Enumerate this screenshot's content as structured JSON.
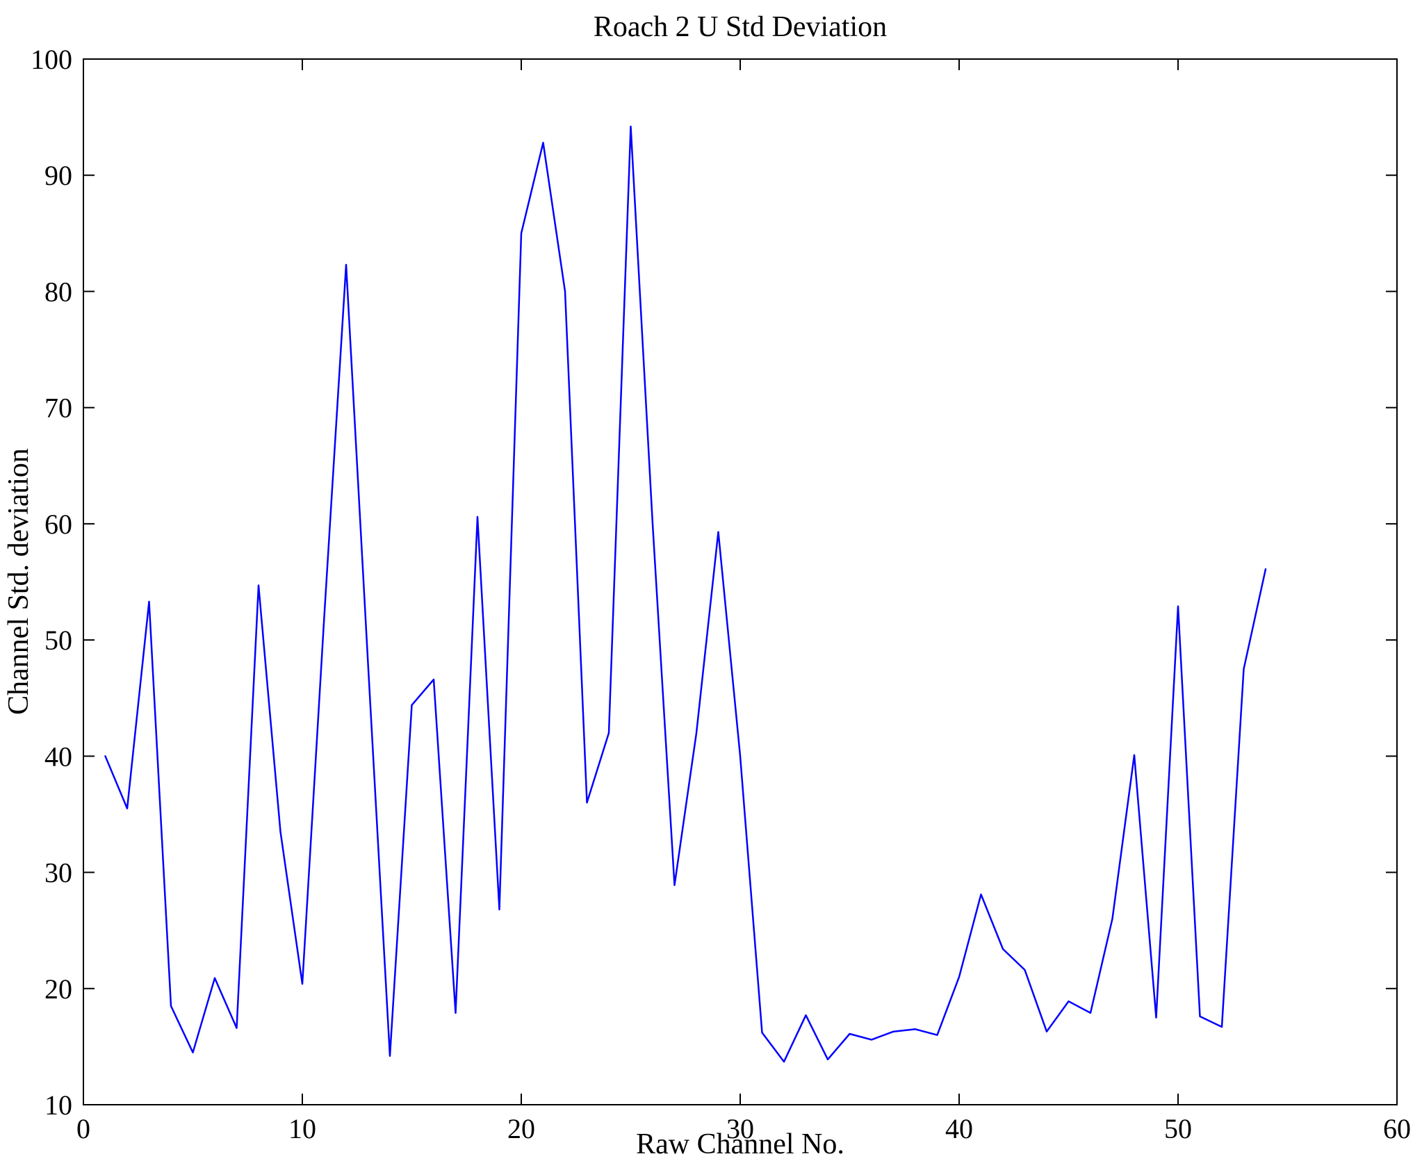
{
  "chart_data": {
    "type": "line",
    "title": "Roach 2 U Std Deviation",
    "xlabel": "Raw Channel No.",
    "ylabel": "Channel Std. deviation",
    "xlim": [
      0,
      60
    ],
    "ylim": [
      10,
      100
    ],
    "xticks": [
      0,
      10,
      20,
      30,
      40,
      50,
      60
    ],
    "yticks": [
      10,
      20,
      30,
      40,
      50,
      60,
      70,
      80,
      90,
      100
    ],
    "grid": false,
    "legend": "none",
    "line_color": "#0000ff",
    "axis_color": "#000000",
    "background_color": "#ffffff",
    "x": [
      1,
      2,
      3,
      4,
      5,
      6,
      7,
      8,
      9,
      10,
      11,
      12,
      13,
      14,
      15,
      16,
      17,
      18,
      19,
      20,
      21,
      22,
      23,
      24,
      25,
      26,
      27,
      28,
      29,
      30,
      31,
      32,
      33,
      34,
      35,
      36,
      37,
      38,
      39,
      40,
      41,
      42,
      43,
      44,
      45,
      46,
      47,
      48,
      49,
      50,
      51,
      52,
      53,
      54
    ],
    "y": [
      40.0,
      35.5,
      53.3,
      18.5,
      14.5,
      20.9,
      16.6,
      54.7,
      33.5,
      20.4,
      52.0,
      82.3,
      48.0,
      14.2,
      44.4,
      46.6,
      17.9,
      60.6,
      26.8,
      85.0,
      92.8,
      80.0,
      36.0,
      42.0,
      94.2,
      60.0,
      28.9,
      42.0,
      59.3,
      40.0,
      16.2,
      13.7,
      17.7,
      13.9,
      16.1,
      15.6,
      16.3,
      16.5,
      16.0,
      21.0,
      28.1,
      23.4,
      21.6,
      16.3,
      18.9,
      17.9,
      26.0,
      40.1,
      17.5,
      52.9,
      17.6,
      16.7,
      47.5,
      56.1
    ]
  }
}
